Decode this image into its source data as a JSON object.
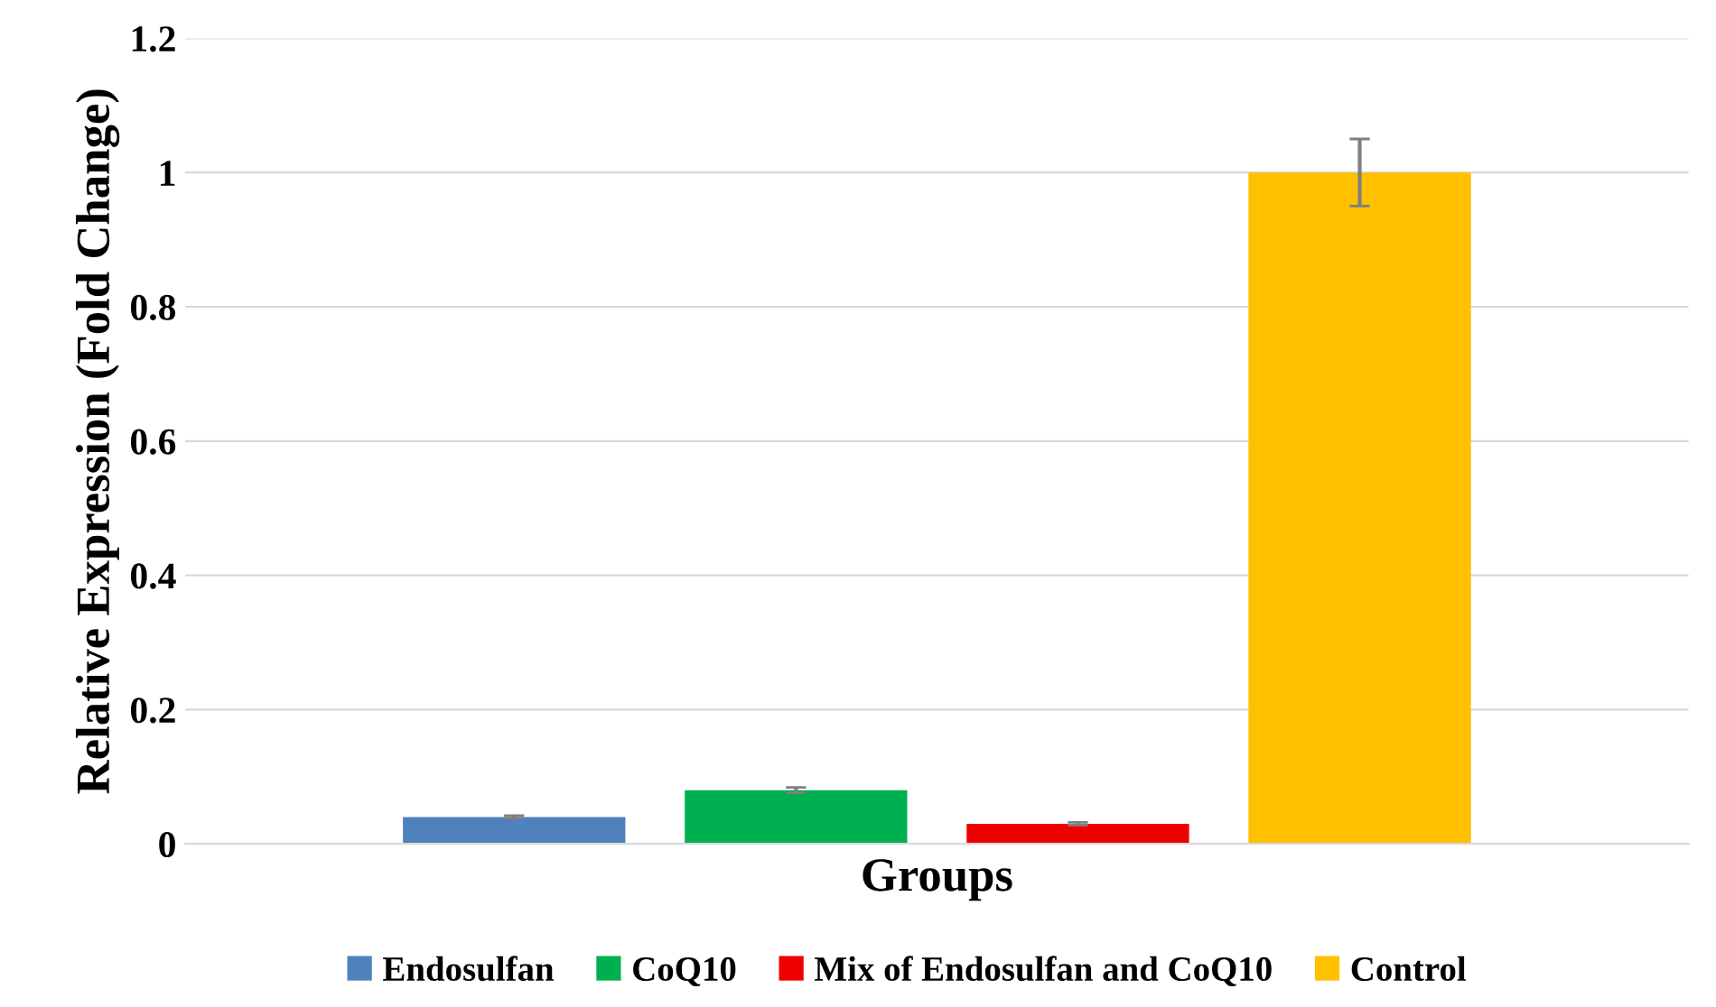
{
  "chart_data": {
    "type": "bar",
    "xlabel": "Groups",
    "ylabel": "Relative Expression (Fold Change)",
    "categories": [
      null
    ],
    "series": [
      {
        "name": "Endosulfan",
        "color": "#4f81bd",
        "values": [
          0.04
        ],
        "errors": [
          0.002
        ]
      },
      {
        "name": "CoQ10",
        "color": "#00b050",
        "values": [
          0.08
        ],
        "errors": [
          0.004
        ]
      },
      {
        "name": "Mix of Endosulfan and CoQ10",
        "color": "#ee0000",
        "values": [
          0.03
        ],
        "errors": [
          0.002
        ]
      },
      {
        "name": "Control",
        "color": "#ffc000",
        "values": [
          1
        ],
        "errors": [
          0.05
        ]
      }
    ],
    "ylim": [
      0,
      1.2
    ],
    "yticks": [
      0,
      0.2,
      0.4,
      0.6,
      0.8,
      1,
      1.2
    ],
    "grid": "y",
    "legend": "bottom"
  }
}
